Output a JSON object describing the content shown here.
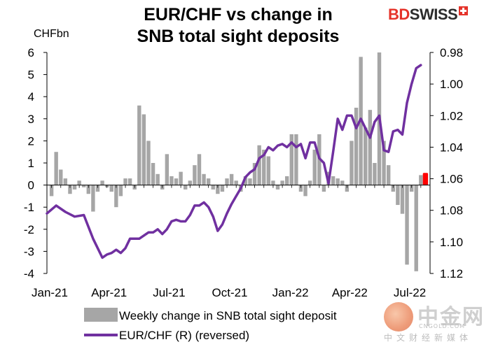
{
  "header": {
    "title_line1": "EUR/CHF vs change in",
    "title_line2": "SNB total sight deposits",
    "logo_part1": "BD",
    "logo_part2": "SWISS"
  },
  "watermark": {
    "chinese": "中金网",
    "url": "CNGOLD.COM",
    "subtitle": "中文财经新媒体"
  },
  "chart_data": {
    "type": "bar",
    "title": "EUR/CHF vs change in SNB total sight deposits",
    "y_left_unit": "CHFbn",
    "y_left_range": [
      -4,
      6
    ],
    "y_left_ticks": [
      "6",
      "5",
      "4",
      "3",
      "2",
      "1",
      "0",
      "-1",
      "-2",
      "-3",
      "-4"
    ],
    "y_right_range": [
      0.98,
      1.12
    ],
    "y_right_reversed": true,
    "y_right_ticks": [
      "0.98",
      "1.00",
      "1.02",
      "1.04",
      "1.06",
      "1.08",
      "1.10",
      "1.12"
    ],
    "x_ticks": [
      "Jan-21",
      "Apr-21",
      "Jul-21",
      "Oct-21",
      "Jan-22",
      "Apr-22",
      "Jul-22"
    ],
    "x_start": "2021-01-01",
    "x_end": "2022-08-05",
    "grid": false,
    "legend_position": "bottom",
    "colors": {
      "bars": "#a6a6a6",
      "line": "#7030a0",
      "highlight": "#ff0000"
    },
    "series": [
      {
        "name": "Weekly change in SNB total sight deposit",
        "kind": "bar",
        "axis": "left",
        "x": [
          "2021-01-08",
          "2021-01-15",
          "2021-01-22",
          "2021-01-29",
          "2021-02-05",
          "2021-02-12",
          "2021-02-19",
          "2021-02-26",
          "2021-03-05",
          "2021-03-12",
          "2021-03-19",
          "2021-03-26",
          "2021-04-02",
          "2021-04-09",
          "2021-04-16",
          "2021-04-23",
          "2021-04-30",
          "2021-05-07",
          "2021-05-14",
          "2021-05-21",
          "2021-05-28",
          "2021-06-04",
          "2021-06-11",
          "2021-06-18",
          "2021-06-25",
          "2021-07-02",
          "2021-07-09",
          "2021-07-16",
          "2021-07-23",
          "2021-07-30",
          "2021-08-06",
          "2021-08-13",
          "2021-08-20",
          "2021-08-27",
          "2021-09-03",
          "2021-09-10",
          "2021-09-17",
          "2021-09-24",
          "2021-10-01",
          "2021-10-08",
          "2021-10-15",
          "2021-10-22",
          "2021-10-29",
          "2021-11-05",
          "2021-11-12",
          "2021-11-19",
          "2021-11-26",
          "2021-12-03",
          "2021-12-10",
          "2021-12-17",
          "2021-12-24",
          "2021-12-31",
          "2022-01-07",
          "2022-01-14",
          "2022-01-21",
          "2022-01-28",
          "2022-02-04",
          "2022-02-11",
          "2022-02-18",
          "2022-02-25",
          "2022-03-04",
          "2022-03-11",
          "2022-03-18",
          "2022-03-25",
          "2022-04-01",
          "2022-04-08",
          "2022-04-15",
          "2022-04-22",
          "2022-04-29",
          "2022-05-06",
          "2022-05-13",
          "2022-05-20",
          "2022-05-27",
          "2022-06-03",
          "2022-06-10",
          "2022-06-17",
          "2022-06-24",
          "2022-07-01",
          "2022-07-08",
          "2022-07-15",
          "2022-07-22"
        ],
        "values": [
          -0.5,
          1.5,
          0.7,
          0.3,
          -0.4,
          -0.2,
          0.2,
          -0.1,
          -0.4,
          -1.2,
          -0.3,
          0.2,
          -0.1,
          -0.3,
          -1.0,
          -0.5,
          0.3,
          0.3,
          -0.2,
          3.6,
          3.2,
          2.0,
          1.0,
          0.5,
          -0.2,
          1.4,
          0.4,
          0.3,
          0.6,
          -0.2,
          0.2,
          0.9,
          1.4,
          0.5,
          0.3,
          -0.2,
          -0.4,
          -0.3,
          0.3,
          0.5,
          0.2,
          -0.3,
          0.4,
          0.3,
          1.0,
          1.8,
          1.6,
          1.3,
          0.2,
          -0.2,
          0.2,
          0.4,
          2.3,
          2.3,
          -0.3,
          -0.5,
          0.2,
          1.6,
          2.3,
          -0.3,
          0.6,
          0.4,
          0.3,
          0.2,
          -0.3,
          2.0,
          3.5,
          5.8,
          2.6,
          3.4,
          1.0,
          6.0,
          2.0,
          0.9,
          -0.3,
          -0.9,
          -1.3,
          -3.6,
          -0.3,
          -3.9,
          0.45
        ]
      },
      {
        "name": "EUR/CHF (R) (reversed)",
        "kind": "line",
        "axis": "right",
        "x": [
          "2021-01-01",
          "2021-01-15",
          "2021-01-29",
          "2021-02-12",
          "2021-02-26",
          "2021-03-12",
          "2021-03-26",
          "2021-04-02",
          "2021-04-09",
          "2021-04-16",
          "2021-04-23",
          "2021-04-30",
          "2021-05-07",
          "2021-05-14",
          "2021-05-21",
          "2021-05-28",
          "2021-06-04",
          "2021-06-11",
          "2021-06-18",
          "2021-06-25",
          "2021-07-02",
          "2021-07-09",
          "2021-07-16",
          "2021-07-23",
          "2021-07-30",
          "2021-08-06",
          "2021-08-13",
          "2021-08-20",
          "2021-08-27",
          "2021-09-03",
          "2021-09-10",
          "2021-09-17",
          "2021-09-24",
          "2021-10-01",
          "2021-10-08",
          "2021-10-15",
          "2021-10-22",
          "2021-10-29",
          "2021-11-05",
          "2021-11-12",
          "2021-11-19",
          "2021-11-26",
          "2021-12-03",
          "2021-12-10",
          "2021-12-17",
          "2021-12-24",
          "2021-12-31",
          "2022-01-07",
          "2022-01-14",
          "2022-01-21",
          "2022-01-28",
          "2022-02-04",
          "2022-02-11",
          "2022-02-18",
          "2022-02-25",
          "2022-03-04",
          "2022-03-11",
          "2022-03-18",
          "2022-03-25",
          "2022-04-01",
          "2022-04-08",
          "2022-04-15",
          "2022-04-22",
          "2022-04-29",
          "2022-05-06",
          "2022-05-13",
          "2022-05-20",
          "2022-05-27",
          "2022-06-03",
          "2022-06-10",
          "2022-06-17",
          "2022-06-24",
          "2022-07-01",
          "2022-07-08",
          "2022-07-15",
          "2022-07-22"
        ],
        "values": [
          1.082,
          1.077,
          1.081,
          1.084,
          1.083,
          1.098,
          1.11,
          1.108,
          1.107,
          1.105,
          1.107,
          1.104,
          1.098,
          1.098,
          1.098,
          1.096,
          1.094,
          1.094,
          1.092,
          1.095,
          1.092,
          1.087,
          1.086,
          1.087,
          1.087,
          1.083,
          1.077,
          1.077,
          1.075,
          1.078,
          1.084,
          1.093,
          1.089,
          1.082,
          1.076,
          1.071,
          1.066,
          1.059,
          1.056,
          1.054,
          1.047,
          1.045,
          1.04,
          1.042,
          1.039,
          1.038,
          1.04,
          1.037,
          1.04,
          1.038,
          1.047,
          1.037,
          1.037,
          1.047,
          1.05,
          1.063,
          1.043,
          1.022,
          1.029,
          1.02,
          1.02,
          1.028,
          1.022,
          1.028,
          1.034,
          1.024,
          1.02,
          1.042,
          1.043,
          1.03,
          1.029,
          1.032,
          1.012,
          1.0,
          0.99,
          0.988
        ]
      }
    ],
    "annotations": [
      {
        "kind": "highlight",
        "x": "2022-07-29",
        "value": 0.55
      }
    ]
  }
}
